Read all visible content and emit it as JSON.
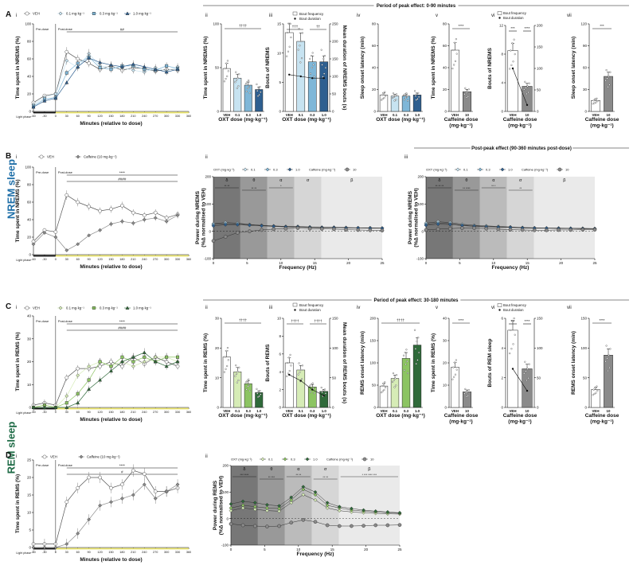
{
  "colors": {
    "oxt0": "#ffffff",
    "oxt1_nrem": "#c7e3f1",
    "oxt2_nrem": "#7fb7d8",
    "oxt3_nrem": "#2e5f90",
    "oxt1_rem": "#d6ecb6",
    "oxt2_rem": "#8cc462",
    "oxt3_rem": "#2f6a3a",
    "caf": "#8a8a8a",
    "nrem_label": "#1f6fa8",
    "rem_label": "#1e6b46",
    "yellow": "#e9e36b"
  },
  "sections": {
    "nrem": "NREM sleep",
    "rem": "REM sleep"
  },
  "headers": {
    "a": "Period of peak effect: 0-90 minutes",
    "b": "Post-peak effect (90-360 minutes post-dose)",
    "c": "Period of peak effect: 30-180 minutes"
  },
  "common": {
    "pre_dose": "Pre-dose",
    "post_dose": "Post-dose",
    "light_phase": "Light phase",
    "x_time": "Minutes (relative to dose)",
    "x_freq": "Frequency (Hz)",
    "oxt_dose": "OXT dose (mg·kg⁻¹)",
    "caf_dose": "Caffeine dose\n(mg·kg⁻¹)",
    "bout_freq": "Bout frequency",
    "bout_dur": "Bout duration",
    "oxt_key": "OXT (mg·kg⁻¹)",
    "caf_key": "Caffeine (mg·kg⁻¹)"
  },
  "bands": [
    "δ",
    "θ",
    "α",
    "σ",
    "β"
  ],
  "chart_data": [
    {
      "id": "A-i",
      "type": "line",
      "title": "",
      "ylabel": "Time spent in NREMS (%)",
      "xlabel": "Minutes (relative to dose)",
      "ylim": [
        0,
        100
      ],
      "x": [
        -60,
        -30,
        0,
        30,
        60,
        90,
        120,
        150,
        180,
        210,
        240,
        270,
        300,
        330
      ],
      "series": [
        {
          "name": "VEH",
          "values": [
            10,
            18,
            20,
            68,
            60,
            55,
            48,
            52,
            47,
            50,
            49,
            46,
            48,
            47
          ]
        },
        {
          "name": "0.1 mg·kg⁻¹",
          "values": [
            8,
            16,
            20,
            58,
            50,
            66,
            52,
            50,
            50,
            47,
            45,
            50,
            46,
            51
          ]
        },
        {
          "name": "0.3 mg·kg⁻¹",
          "values": [
            6,
            14,
            16,
            44,
            55,
            62,
            50,
            48,
            52,
            52,
            48,
            47,
            52,
            49
          ]
        },
        {
          "name": "1.0 mg·kg⁻¹",
          "values": [
            5,
            12,
            15,
            33,
            51,
            61,
            56,
            53,
            51,
            54,
            51,
            48,
            45,
            48
          ]
        }
      ],
      "annotations": [
        "##"
      ]
    },
    {
      "id": "A-ii",
      "type": "bar",
      "ylabel": "Time spent in NREMS (%)",
      "xlabel": "OXT dose (mg·kg⁻¹)",
      "ylim": [
        0,
        100
      ],
      "categories": [
        "VEH",
        "0.1",
        "0.3",
        "1.0"
      ],
      "values": [
        49,
        38,
        30,
        25
      ],
      "sig": "††††"
    },
    {
      "id": "A-iii",
      "type": "bar",
      "ylabel": "Bouts of NREMS",
      "y2label": "Mean duration of NREMS bouts (s)",
      "xlabel": "OXT dose (mg·kg⁻¹)",
      "ylim": [
        0,
        15
      ],
      "y2lim": [
        0,
        250
      ],
      "categories": [
        "VEH",
        "0.1",
        "0.3",
        "1.0"
      ],
      "values": [
        13.5,
        12.0,
        8.5,
        8.5
      ],
      "values2": [
        105,
        100,
        95,
        95
      ],
      "sig": [
        "†††",
        "††"
      ]
    },
    {
      "id": "A-iv",
      "type": "bar",
      "ylabel": "Sleep onset latency (min)",
      "xlabel": "OXT dose (mg·kg⁻¹)",
      "ylim": [
        0,
        80
      ],
      "categories": [
        "VEH",
        "0.1",
        "0.3",
        "1.0"
      ],
      "values": [
        15,
        14,
        14,
        15
      ]
    },
    {
      "id": "A-v",
      "type": "bar",
      "ylabel": "Time spent in NREMS (%)",
      "xlabel": "Caffeine dose\n(mg·kg⁻¹)",
      "ylim": [
        0,
        80
      ],
      "categories": [
        "VEH",
        "10"
      ],
      "values": [
        56,
        18
      ],
      "sig": "****"
    },
    {
      "id": "A-vi",
      "type": "bar",
      "ylabel": "Bouts of NREMS",
      "y2label": "",
      "xlabel": "Caffeine dose\n(mg·kg⁻¹)",
      "ylim": [
        0,
        12
      ],
      "y2lim": [
        0,
        200
      ],
      "categories": [
        "VEH",
        "10"
      ],
      "values": [
        8.5,
        3.5
      ],
      "values2": [
        100,
        15
      ],
      "sig": [
        "***",
        "****"
      ]
    },
    {
      "id": "A-vii",
      "type": "bar",
      "ylabel": "Sleep onset latency (min)",
      "xlabel": "Caffeine dose\n(mg·kg⁻¹)",
      "ylim": [
        0,
        120
      ],
      "categories": [
        "VEH",
        "10"
      ],
      "values": [
        15,
        48
      ],
      "sig": "***"
    },
    {
      "id": "B-i",
      "type": "line",
      "ylabel": "Time spent in NREMS (%)",
      "xlabel": "Minutes (relative to dose)",
      "ylim": [
        0,
        100
      ],
      "x": [
        -60,
        -30,
        0,
        30,
        60,
        90,
        120,
        150,
        180,
        210,
        240,
        270,
        300,
        330
      ],
      "series": [
        {
          "name": "VEH",
          "values": [
            15,
            28,
            26,
            68,
            60,
            55,
            50,
            52,
            56,
            48,
            45,
            48,
            42,
            46
          ]
        },
        {
          "name": "Caffeine (10 mg·kg⁻¹)",
          "values": [
            12,
            25,
            20,
            5,
            12,
            22,
            28,
            35,
            38,
            36,
            40,
            42,
            38,
            45
          ]
        }
      ],
      "annotations": [
        "****",
        "####"
      ]
    },
    {
      "id": "B-ii",
      "type": "line",
      "ylabel": "Power during NREMS\n(%Δ normalised to VEH)",
      "xlabel": "Frequency (Hz)",
      "ylim": [
        -100,
        200
      ],
      "xlim": [
        0,
        25
      ],
      "series": [
        {
          "name": "0.1",
          "values": [
            28,
            32,
            30,
            25,
            22,
            20,
            18,
            18,
            16,
            15,
            15,
            14,
            13,
            13,
            12
          ]
        },
        {
          "name": "0.3",
          "values": [
            25,
            28,
            27,
            24,
            21,
            19,
            17,
            17,
            15,
            14,
            14,
            13,
            13,
            12,
            12
          ]
        },
        {
          "name": "1.0",
          "values": [
            20,
            24,
            24,
            22,
            20,
            18,
            16,
            16,
            14,
            13,
            13,
            12,
            12,
            11,
            11
          ]
        },
        {
          "name": "Caffeine 10",
          "values": [
            -35,
            -20,
            -5,
            0,
            5,
            8,
            10,
            12,
            10,
            9,
            8,
            6,
            5,
            4,
            3
          ]
        }
      ],
      "annotations": [
        "** **",
        "** **",
        "*"
      ]
    },
    {
      "id": "B-iii",
      "type": "line",
      "ylabel": "Power during NREMS\n(%Δ normalised to VEH)",
      "xlabel": "Frequency (Hz)",
      "ylim": [
        -100,
        200
      ],
      "xlim": [
        0,
        25
      ],
      "series": [
        {
          "name": "0.1",
          "values": [
            30,
            35,
            32,
            26,
            22,
            20,
            18,
            16,
            14,
            13,
            12,
            12,
            11,
            11,
            10
          ]
        },
        {
          "name": "0.3",
          "values": [
            26,
            30,
            28,
            23,
            20,
            18,
            16,
            15,
            13,
            12,
            12,
            11,
            11,
            10,
            10
          ]
        },
        {
          "name": "1.0",
          "values": [
            22,
            26,
            25,
            21,
            18,
            16,
            15,
            14,
            12,
            11,
            11,
            10,
            10,
            9,
            9
          ]
        },
        {
          "name": "Caffeine 10",
          "values": [
            5,
            8,
            10,
            12,
            12,
            10,
            8,
            6,
            5,
            4,
            4,
            5,
            5,
            6,
            6
          ]
        }
      ],
      "annotations": [
        "** ** **",
        "** ****",
        "** *",
        "**"
      ]
    },
    {
      "id": "C-i",
      "type": "line",
      "ylabel": "Time spent in REMS (%)",
      "xlabel": "Minutes (relative to dose)",
      "ylim": [
        0,
        40
      ],
      "x": [
        -60,
        -30,
        0,
        30,
        60,
        90,
        120,
        150,
        180,
        210,
        240,
        270,
        300,
        330
      ],
      "series": [
        {
          "name": "VEH",
          "values": [
            1,
            2,
            1,
            13,
            17,
            17,
            18,
            20,
            18,
            22,
            19,
            22,
            20,
            18
          ]
        },
        {
          "name": "0.1 mg·kg⁻¹",
          "values": [
            0,
            1,
            0,
            5,
            14,
            18,
            20,
            18,
            20,
            18,
            20,
            22,
            22,
            20
          ]
        },
        {
          "name": "0.3 mg·kg⁻¹",
          "values": [
            0,
            1,
            0,
            2,
            6,
            12,
            20,
            18,
            22,
            20,
            22,
            20,
            22,
            22
          ]
        },
        {
          "name": "1.0 mg·kg⁻¹",
          "values": [
            0,
            0,
            0,
            0,
            2,
            8,
            12,
            16,
            20,
            22,
            24,
            20,
            18,
            20
          ]
        }
      ],
      "annotations": [
        "****",
        "####"
      ]
    },
    {
      "id": "C-ii",
      "type": "bar",
      "ylabel": "Time spent in REMS (%)",
      "xlabel": "OXT dose (mg·kg⁻¹)",
      "ylim": [
        0,
        30
      ],
      "categories": [
        "VEH",
        "0.1",
        "0.3",
        "1.0"
      ],
      "values": [
        17,
        12,
        8,
        5
      ],
      "sig": "††††"
    },
    {
      "id": "C-iii",
      "type": "bar",
      "ylabel": "Bouts of REMS",
      "y2label": "Mean duration of REMS bouts (s)",
      "xlabel": "OXT dose (mg·kg⁻¹)",
      "ylim": [
        0,
        10
      ],
      "y2lim": [
        0,
        150
      ],
      "categories": [
        "VEH",
        "0.1",
        "0.3",
        "1.0"
      ],
      "values": [
        5,
        4.2,
        2.3,
        1.8
      ],
      "values2": [
        55,
        45,
        30,
        20
      ],
      "sig": [
        "††††",
        "††††"
      ]
    },
    {
      "id": "C-iv",
      "type": "bar",
      "ylabel": "REMS onset latency (min)",
      "xlabel": "OXT dose (mg·kg⁻¹)",
      "ylim": [
        0,
        200
      ],
      "categories": [
        "VEH",
        "0.1",
        "0.3",
        "1.0"
      ],
      "values": [
        48,
        65,
        110,
        140
      ],
      "sig": "††††"
    },
    {
      "id": "C-v",
      "type": "bar",
      "ylabel": "Time spent in REMS (%)",
      "xlabel": "Caffeine dose\n(mg·kg⁻¹)",
      "ylim": [
        0,
        40
      ],
      "categories": [
        "VEH",
        "10"
      ],
      "values": [
        18,
        7
      ],
      "sig": "****"
    },
    {
      "id": "C-vi",
      "type": "bar",
      "ylabel": "Bouts of REM sleep",
      "y2label": "",
      "xlabel": "Caffeine dose\n(mg·kg⁻¹)",
      "ylim": [
        0,
        6
      ],
      "y2lim": [
        0,
        150
      ],
      "categories": [
        "VEH",
        "10"
      ],
      "values": [
        5.2,
        2.6
      ],
      "values2": [
        65,
        28
      ],
      "sig": [
        "***",
        "****"
      ]
    },
    {
      "id": "C-vii",
      "type": "bar",
      "ylabel": "REMS onset latency (min)",
      "xlabel": "Caffeine dose\n(mg·kg⁻¹)",
      "ylim": [
        0,
        150
      ],
      "categories": [
        "VEH",
        "10"
      ],
      "values": [
        30,
        88
      ],
      "sig": "****"
    },
    {
      "id": "D-i",
      "type": "line",
      "ylabel": "Time spent in REMS (%)",
      "xlabel": "Minutes (relative to dose)",
      "ylim": [
        0,
        25
      ],
      "x": [
        -60,
        -30,
        0,
        30,
        60,
        90,
        120,
        150,
        180,
        210,
        240,
        270,
        300,
        330
      ],
      "series": [
        {
          "name": "VEH",
          "values": [
            1,
            1,
            1,
            13,
            17,
            20,
            20,
            17,
            18,
            22,
            21,
            16,
            16,
            17
          ]
        },
        {
          "name": "Caffeine (10 mg·kg⁻¹)",
          "values": [
            0,
            0,
            0,
            1,
            4,
            8,
            12,
            13,
            14,
            15,
            18,
            14,
            16,
            18
          ]
        }
      ],
      "annotations": [
        "****",
        "#"
      ]
    },
    {
      "id": "D-ii",
      "type": "line",
      "ylabel": "Power during REMS\n(%Δ normalised to VEH)",
      "xlabel": "Frequency (Hz)",
      "ylim": [
        -100,
        200
      ],
      "xlim": [
        0,
        25
      ],
      "series": [
        {
          "name": "0.1",
          "values": [
            30,
            40,
            35,
            30,
            28,
            60,
            90,
            70,
            40,
            30,
            25,
            22,
            20,
            18,
            17
          ]
        },
        {
          "name": "0.3",
          "values": [
            40,
            50,
            45,
            40,
            38,
            70,
            110,
            90,
            50,
            40,
            32,
            28,
            25,
            22,
            20
          ]
        },
        {
          "name": "1.0",
          "values": [
            55,
            65,
            60,
            52,
            48,
            80,
            120,
            100,
            60,
            45,
            38,
            32,
            28,
            25,
            22
          ]
        },
        {
          "name": "Caffeine 10",
          "values": [
            -20,
            -25,
            -28,
            -30,
            -28,
            -15,
            -5,
            -12,
            -25,
            -28,
            -28,
            -27,
            -25,
            -25,
            -24
          ]
        }
      ],
      "annotations": [
        "*** ****",
        "** ***",
        "** **",
        "** **",
        "* *** **** ***"
      ]
    }
  ]
}
